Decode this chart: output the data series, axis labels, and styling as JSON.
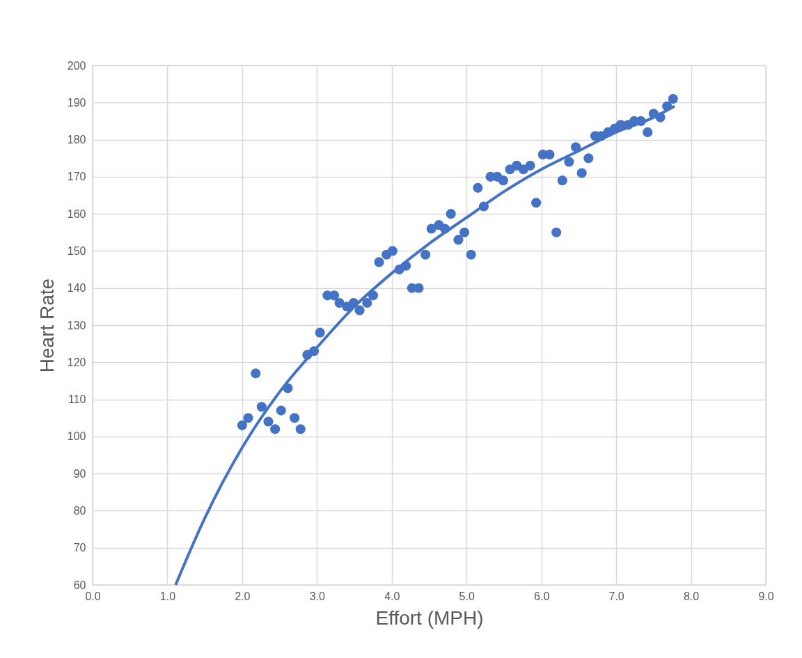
{
  "chart_data": {
    "type": "scatter",
    "xlabel": "Effort (MPH)",
    "ylabel": "Heart Rate",
    "xlim": [
      0,
      9
    ],
    "ylim": [
      60,
      200
    ],
    "xticks": [
      {
        "value": 0,
        "label": "0.0"
      },
      {
        "value": 1,
        "label": "1.0"
      },
      {
        "value": 2,
        "label": "2.0"
      },
      {
        "value": 3,
        "label": "3.0"
      },
      {
        "value": 4,
        "label": "4.0"
      },
      {
        "value": 5,
        "label": "5.0"
      },
      {
        "value": 6,
        "label": "6.0"
      },
      {
        "value": 7,
        "label": "7.0"
      },
      {
        "value": 8,
        "label": "8.0"
      },
      {
        "value": 9,
        "label": "9.0"
      }
    ],
    "yticks": [
      60,
      70,
      80,
      90,
      100,
      110,
      120,
      130,
      140,
      150,
      160,
      170,
      180,
      190,
      200
    ],
    "grid": true,
    "series": [
      {
        "marker": "circle",
        "color": "#4472c4",
        "x": [
          2.0,
          2.08,
          2.18,
          2.26,
          2.35,
          2.44,
          2.52,
          2.61,
          2.7,
          2.78,
          2.87,
          2.96,
          3.04,
          3.14,
          3.23,
          3.3,
          3.4,
          3.49,
          3.57,
          3.67,
          3.75,
          3.83,
          3.93,
          4.01,
          4.1,
          4.19,
          4.27,
          4.36,
          4.45,
          4.53,
          4.63,
          4.71,
          4.79,
          4.89,
          4.97,
          5.06,
          5.15,
          5.23,
          5.32,
          5.41,
          5.49,
          5.58,
          5.67,
          5.76,
          5.85,
          5.93,
          6.02,
          6.11,
          6.2,
          6.28,
          6.37,
          6.46,
          6.54,
          6.63,
          6.72,
          6.8,
          6.89,
          6.98,
          7.06,
          7.16,
          7.24,
          7.33,
          7.42,
          7.5,
          7.59,
          7.68,
          7.76
        ],
        "values": [
          103,
          105,
          117,
          108,
          104,
          102,
          107,
          113,
          105,
          102,
          122,
          123,
          128,
          138,
          138,
          136,
          135,
          136,
          134,
          136,
          138,
          147,
          149,
          150,
          145,
          146,
          140,
          140,
          149,
          156,
          157,
          156,
          160,
          153,
          155,
          149,
          167,
          162,
          170,
          170,
          169,
          172,
          173,
          172,
          173,
          163,
          176,
          176,
          155,
          169,
          174,
          178,
          171,
          175,
          181,
          181,
          182,
          183,
          184,
          184,
          185,
          185,
          182,
          187,
          186,
          189,
          191
        ]
      },
      {
        "type": "line",
        "marker": "none",
        "color": "#4472c4",
        "x": [
          1.11,
          1.5,
          2,
          2.5,
          3,
          3.5,
          4,
          4.5,
          5,
          5.5,
          6,
          6.5,
          7,
          7.5,
          7.78
        ],
        "values": [
          60,
          78,
          97,
          112,
          124,
          135,
          144,
          152,
          159,
          166,
          172,
          177,
          182,
          186,
          189
        ]
      }
    ]
  }
}
